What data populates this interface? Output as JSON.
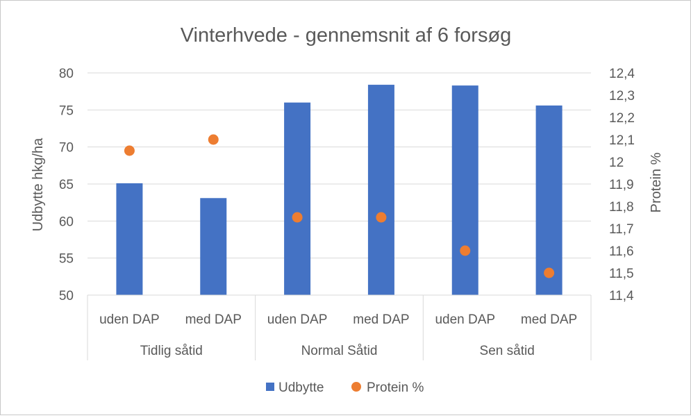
{
  "chart_data": {
    "type": "bar",
    "title": "Vinterhvede - gennemsnit af 6 forsøg",
    "ylabel": "Udbytte hkg/ha",
    "y2label": "Protein %",
    "ylim": [
      50,
      80
    ],
    "y_ticks": [
      "80",
      "75",
      "70",
      "65",
      "60",
      "55",
      "50"
    ],
    "y2lim": [
      11.4,
      12.4
    ],
    "y2_ticks": [
      "12,4",
      "12,3",
      "12,2",
      "12,1",
      "12",
      "11,9",
      "11,8",
      "11,7",
      "11,6",
      "11,5",
      "11,4"
    ],
    "categories": [
      "uden DAP",
      "med DAP",
      "uden DAP",
      "med DAP",
      "uden DAP",
      "med DAP"
    ],
    "groups": [
      "Tidlig såtid",
      "Normal Såtid",
      "Sen såtid"
    ],
    "grid": true,
    "legend_position": "bottom",
    "series": [
      {
        "name": "Udbytte",
        "type": "bar",
        "axis": "left",
        "color": "#4472c4",
        "values": [
          65.1,
          63.1,
          76.0,
          78.4,
          78.3,
          75.6
        ]
      },
      {
        "name": "Protein %",
        "type": "scatter",
        "axis": "right",
        "color": "#ed7d31",
        "values": [
          12.05,
          12.1,
          11.75,
          11.75,
          11.6,
          11.5
        ]
      }
    ]
  }
}
